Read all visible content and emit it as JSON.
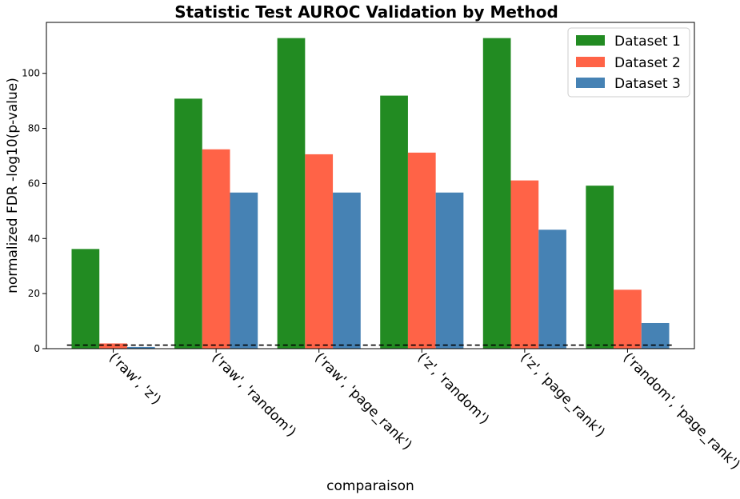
{
  "chart_data": {
    "type": "bar",
    "title": "Statistic Test AUROC Validation by Method",
    "xlabel": "comparaison",
    "ylabel": "normalized FDR -log10(p-value)",
    "categories": [
      "('raw', 'z')",
      "('raw', 'random')",
      "('raw', 'page_rank')",
      "('z', 'random')",
      "('z', 'page_rank')",
      "('random', 'page_rank')"
    ],
    "series": [
      {
        "name": "Dataset 1",
        "color": "#228B22",
        "values": [
          36.2,
          90.8,
          112.8,
          91.9,
          112.8,
          59.2
        ]
      },
      {
        "name": "Dataset 2",
        "color": "#FF6347",
        "values": [
          1.9,
          72.4,
          70.6,
          71.2,
          61.1,
          21.4
        ]
      },
      {
        "name": "Dataset 3",
        "color": "#4682B4",
        "values": [
          0.6,
          56.7,
          56.7,
          56.7,
          43.2,
          9.3
        ]
      }
    ],
    "ylim": [
      0,
      118.5
    ],
    "yticks": [
      0,
      20,
      40,
      60,
      80,
      100
    ],
    "threshold": 1.3,
    "threshold_style": "dashed black line",
    "legend_position": "top-right",
    "grid": false
  }
}
